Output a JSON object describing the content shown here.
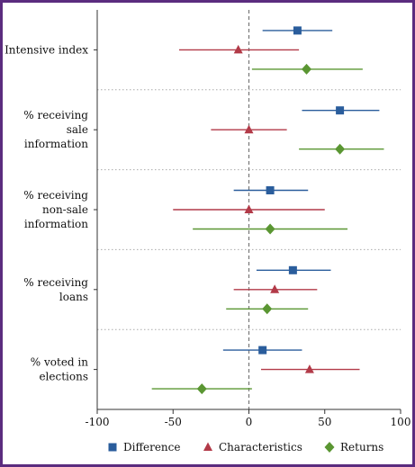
{
  "chart_data": {
    "type": "scatter",
    "subtype": "coefficient-plot-with-confidence-intervals",
    "categories": [
      [
        "Intensive index"
      ],
      [
        "% receiving",
        "sale",
        "information"
      ],
      [
        "% receiving",
        "non-sale",
        "information"
      ],
      [
        "% receiving",
        "loans"
      ],
      [
        "% voted in",
        "elections"
      ]
    ],
    "xlim": [
      -100,
      100
    ],
    "xticks": [
      "-100",
      "-50",
      "0",
      "50",
      "100"
    ],
    "reference_line_x": 0,
    "grid": "dotted horizontal separators between categories",
    "legend_position": "bottom",
    "series": [
      {
        "name": "Difference",
        "color": "#2a5d9c",
        "marker": "square",
        "points": [
          {
            "estimate": 32,
            "ci": [
              9,
              55
            ]
          },
          {
            "estimate": 60,
            "ci": [
              35,
              86
            ]
          },
          {
            "estimate": 14,
            "ci": [
              -10,
              39
            ]
          },
          {
            "estimate": 29,
            "ci": [
              5,
              54
            ]
          },
          {
            "estimate": 9,
            "ci": [
              -17,
              35
            ]
          }
        ]
      },
      {
        "name": "Characteristics",
        "color": "#b23a48",
        "marker": "triangle",
        "points": [
          {
            "estimate": -7,
            "ci": [
              -46,
              33
            ]
          },
          {
            "estimate": 0,
            "ci": [
              -25,
              25
            ]
          },
          {
            "estimate": 0,
            "ci": [
              -50,
              50
            ]
          },
          {
            "estimate": 17,
            "ci": [
              -10,
              45
            ]
          },
          {
            "estimate": 40,
            "ci": [
              8,
              73
            ]
          }
        ]
      },
      {
        "name": "Returns",
        "color": "#5a9632",
        "marker": "diamond",
        "points": [
          {
            "estimate": 38,
            "ci": [
              2,
              75
            ]
          },
          {
            "estimate": 60,
            "ci": [
              33,
              89
            ]
          },
          {
            "estimate": 14,
            "ci": [
              -37,
              65
            ]
          },
          {
            "estimate": 12,
            "ci": [
              -15,
              39
            ]
          },
          {
            "estimate": -31,
            "ci": [
              -64,
              2
            ]
          }
        ]
      }
    ]
  }
}
